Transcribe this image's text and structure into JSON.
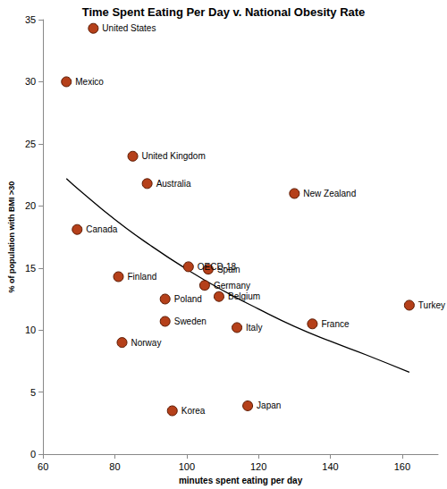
{
  "chart_data": {
    "type": "scatter",
    "title": "Time Spent Eating Per Day v. National Obesity Rate",
    "x_label": "minutes spent eating per day",
    "y_label": "% of population with BMI >30",
    "xlim": [
      60,
      170
    ],
    "xticks": [
      60,
      80,
      100,
      120,
      140,
      160
    ],
    "ylim": [
      0,
      35
    ],
    "yticks": [
      0,
      5,
      10,
      15,
      20,
      25,
      30,
      35
    ],
    "grid": false,
    "series": [
      {
        "type": "scatter",
        "color": "#b5401a",
        "marker": "circle",
        "data_labels": true,
        "labels": [
          "United States",
          "Mexico",
          "United Kingdom",
          "Australia",
          "New Zealand",
          "Canada",
          "Finland",
          "OECD-18",
          "Spain",
          "Germany",
          "Poland",
          "Belgium",
          "Sweden",
          "Italy",
          "France",
          "Turkey",
          "Norway",
          "Korea",
          "Japan"
        ],
        "x": [
          74,
          66.5,
          85,
          89,
          130,
          69.5,
          81,
          100.5,
          106,
          105,
          94,
          109,
          94,
          114,
          135,
          162,
          82,
          96,
          117
        ],
        "values": [
          34.3,
          30,
          24,
          21.8,
          21,
          18.1,
          14.3,
          15.1,
          14.9,
          13.6,
          12.5,
          12.7,
          10.7,
          10.2,
          10.5,
          12,
          9,
          3.5,
          3.9
        ]
      },
      {
        "type": "line",
        "color": "#000000",
        "line_style": "solid",
        "x": [
          66.5,
          70,
          80,
          90,
          100,
          110,
          120,
          130,
          140,
          150,
          162
        ],
        "values": [
          22.2,
          21.3,
          18.9,
          16.8,
          14.9,
          13.2,
          11.7,
          10.3,
          9.1,
          8.0,
          6.6
        ]
      }
    ]
  }
}
